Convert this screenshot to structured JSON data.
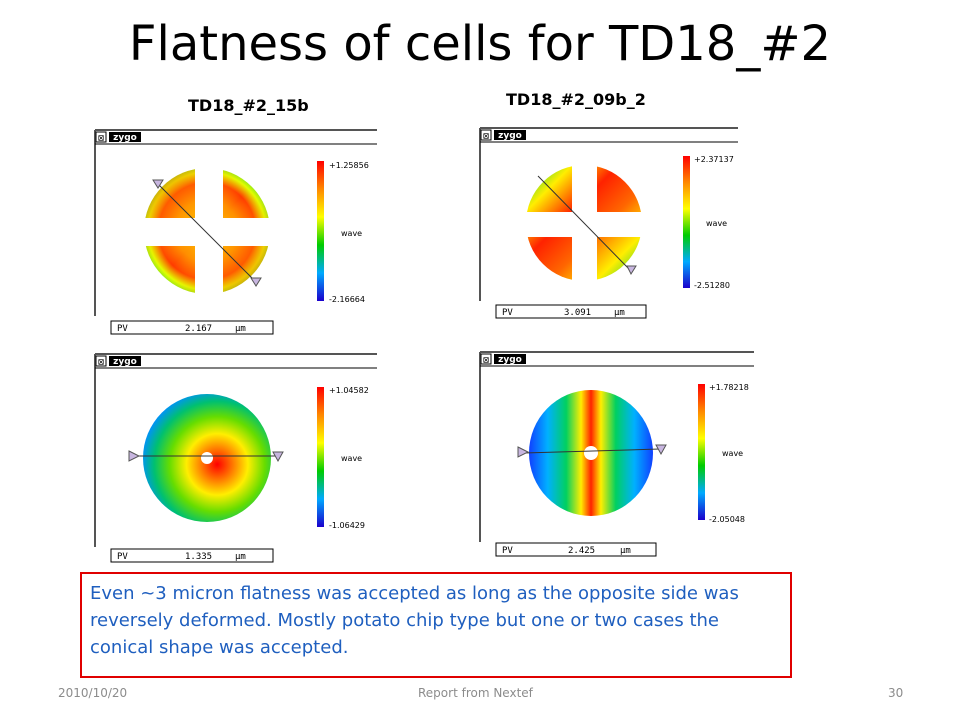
{
  "slide": {
    "title": "Flatness of cells for TD18_#2",
    "col_labels": [
      "TD18_#2_15b",
      "TD18_#2_09b_2"
    ]
  },
  "panels": [
    {
      "logo": "zygo",
      "scale_max": "+1.25856",
      "scale_min": "-2.16664",
      "scale_label": "wave",
      "pv_label": "PV",
      "pv_value": "2.167",
      "pv_unit": "µm",
      "shape": "cross"
    },
    {
      "logo": "zygo",
      "scale_max": "+2.37137",
      "scale_min": "-2.51280",
      "scale_label": "wave",
      "pv_label": "PV",
      "pv_value": "3.091",
      "pv_unit": "µm",
      "shape": "cross"
    },
    {
      "logo": "zygo",
      "scale_max": "+1.04582",
      "scale_min": "-1.06429",
      "scale_label": "wave",
      "pv_label": "PV",
      "pv_value": "1.335",
      "pv_unit": "µm",
      "shape": "ring"
    },
    {
      "logo": "zygo",
      "scale_max": "+1.78218",
      "scale_min": "-2.05048",
      "scale_label": "wave",
      "pv_label": "PV",
      "pv_value": "2.425",
      "pv_unit": "µm",
      "shape": "ring"
    }
  ],
  "note": {
    "text": "Even ~3 micron flatness was accepted as long as the opposite side was reversely deformed. Mostly potato chip type but one or two cases the conical shape was accepted."
  },
  "footer": {
    "date": "2010/10/20",
    "center": "Report from Nextef",
    "page": "30"
  },
  "colors": {
    "note_border": "#e00000",
    "note_text": "#1f5fbf",
    "footer_text": "#8c8c8c"
  }
}
